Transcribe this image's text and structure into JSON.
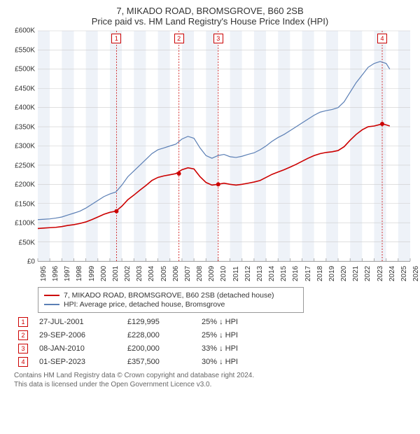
{
  "title": {
    "line1": "7, MIKADO ROAD, BROMSGROVE, B60 2SB",
    "line2": "Price paid vs. HM Land Registry's House Price Index (HPI)"
  },
  "chart": {
    "type": "line",
    "background_color": "#ffffff",
    "plot_bg": "#ffffff",
    "grid_color": "#cccccc",
    "axis_color": "#999999",
    "text_color": "#333333",
    "label_fontsize": 10,
    "x": {
      "min": 1995,
      "max": 2026,
      "ticks": [
        1995,
        1996,
        1997,
        1998,
        1999,
        2000,
        2001,
        2002,
        2003,
        2004,
        2005,
        2006,
        2007,
        2008,
        2009,
        2010,
        2011,
        2012,
        2013,
        2014,
        2015,
        2016,
        2017,
        2018,
        2019,
        2020,
        2021,
        2022,
        2023,
        2024,
        2025,
        2026
      ],
      "label_rotation": -90
    },
    "y": {
      "min": 0,
      "max": 600000,
      "ticks": [
        0,
        50000,
        100000,
        150000,
        200000,
        250000,
        300000,
        350000,
        400000,
        450000,
        500000,
        550000,
        600000
      ],
      "tick_labels": [
        "£0",
        "£50K",
        "£100K",
        "£150K",
        "£200K",
        "£250K",
        "£300K",
        "£350K",
        "£400K",
        "£450K",
        "£500K",
        "£550K",
        "£600K"
      ]
    },
    "bands": {
      "color": "#eef2f8",
      "alt_color": "#ffffff"
    },
    "series": [
      {
        "name": "price_paid",
        "label": "7, MIKADO ROAD, BROMSGROVE, B60 2SB (detached house)",
        "color": "#cc0000",
        "width": 1.6,
        "points": [
          [
            1995.0,
            85000
          ],
          [
            1995.5,
            86000
          ],
          [
            1996.0,
            87000
          ],
          [
            1996.5,
            88000
          ],
          [
            1997.0,
            90000
          ],
          [
            1997.5,
            93000
          ],
          [
            1998.0,
            95000
          ],
          [
            1998.5,
            98000
          ],
          [
            1999.0,
            102000
          ],
          [
            1999.5,
            108000
          ],
          [
            2000.0,
            115000
          ],
          [
            2000.5,
            122000
          ],
          [
            2001.0,
            127000
          ],
          [
            2001.5,
            130000
          ],
          [
            2002.0,
            143000
          ],
          [
            2002.5,
            160000
          ],
          [
            2003.0,
            172000
          ],
          [
            2003.5,
            185000
          ],
          [
            2004.0,
            197000
          ],
          [
            2004.5,
            210000
          ],
          [
            2005.0,
            218000
          ],
          [
            2005.5,
            222000
          ],
          [
            2006.0,
            225000
          ],
          [
            2006.5,
            228000
          ],
          [
            2007.0,
            238000
          ],
          [
            2007.5,
            243000
          ],
          [
            2008.0,
            240000
          ],
          [
            2008.5,
            220000
          ],
          [
            2009.0,
            205000
          ],
          [
            2009.5,
            198000
          ],
          [
            2010.0,
            200000
          ],
          [
            2010.5,
            203000
          ],
          [
            2011.0,
            200000
          ],
          [
            2011.5,
            198000
          ],
          [
            2012.0,
            200000
          ],
          [
            2012.5,
            203000
          ],
          [
            2013.0,
            206000
          ],
          [
            2013.5,
            210000
          ],
          [
            2014.0,
            218000
          ],
          [
            2014.5,
            226000
          ],
          [
            2015.0,
            232000
          ],
          [
            2015.5,
            238000
          ],
          [
            2016.0,
            245000
          ],
          [
            2016.5,
            252000
          ],
          [
            2017.0,
            260000
          ],
          [
            2017.5,
            268000
          ],
          [
            2018.0,
            275000
          ],
          [
            2018.5,
            280000
          ],
          [
            2019.0,
            283000
          ],
          [
            2019.5,
            285000
          ],
          [
            2020.0,
            288000
          ],
          [
            2020.5,
            298000
          ],
          [
            2021.0,
            315000
          ],
          [
            2021.5,
            330000
          ],
          [
            2022.0,
            342000
          ],
          [
            2022.5,
            350000
          ],
          [
            2023.0,
            352000
          ],
          [
            2023.5,
            356000
          ],
          [
            2023.67,
            357500
          ],
          [
            2024.0,
            355000
          ],
          [
            2024.3,
            352000
          ]
        ],
        "markers": [
          {
            "x": 2001.55,
            "y": 130000
          },
          {
            "x": 2006.75,
            "y": 228000
          },
          {
            "x": 2010.02,
            "y": 200000
          },
          {
            "x": 2023.67,
            "y": 357500
          }
        ]
      },
      {
        "name": "hpi",
        "label": "HPI: Average price, detached house, Bromsgrove",
        "color": "#5b7fb5",
        "width": 1.2,
        "points": [
          [
            1995.0,
            108000
          ],
          [
            1995.5,
            109000
          ],
          [
            1996.0,
            110000
          ],
          [
            1996.5,
            112000
          ],
          [
            1997.0,
            115000
          ],
          [
            1997.5,
            120000
          ],
          [
            1998.0,
            125000
          ],
          [
            1998.5,
            130000
          ],
          [
            1999.0,
            138000
          ],
          [
            1999.5,
            148000
          ],
          [
            2000.0,
            158000
          ],
          [
            2000.5,
            168000
          ],
          [
            2001.0,
            175000
          ],
          [
            2001.5,
            180000
          ],
          [
            2002.0,
            198000
          ],
          [
            2002.5,
            220000
          ],
          [
            2003.0,
            235000
          ],
          [
            2003.5,
            250000
          ],
          [
            2004.0,
            265000
          ],
          [
            2004.5,
            280000
          ],
          [
            2005.0,
            290000
          ],
          [
            2005.5,
            295000
          ],
          [
            2006.0,
            300000
          ],
          [
            2006.5,
            305000
          ],
          [
            2007.0,
            318000
          ],
          [
            2007.5,
            325000
          ],
          [
            2008.0,
            320000
          ],
          [
            2008.5,
            295000
          ],
          [
            2009.0,
            275000
          ],
          [
            2009.5,
            268000
          ],
          [
            2010.0,
            275000
          ],
          [
            2010.5,
            278000
          ],
          [
            2011.0,
            272000
          ],
          [
            2011.5,
            270000
          ],
          [
            2012.0,
            273000
          ],
          [
            2012.5,
            278000
          ],
          [
            2013.0,
            282000
          ],
          [
            2013.5,
            290000
          ],
          [
            2014.0,
            300000
          ],
          [
            2014.5,
            312000
          ],
          [
            2015.0,
            322000
          ],
          [
            2015.5,
            330000
          ],
          [
            2016.0,
            340000
          ],
          [
            2016.5,
            350000
          ],
          [
            2017.0,
            360000
          ],
          [
            2017.5,
            370000
          ],
          [
            2018.0,
            380000
          ],
          [
            2018.5,
            388000
          ],
          [
            2019.0,
            392000
          ],
          [
            2019.5,
            395000
          ],
          [
            2020.0,
            400000
          ],
          [
            2020.5,
            415000
          ],
          [
            2021.0,
            440000
          ],
          [
            2021.5,
            465000
          ],
          [
            2022.0,
            485000
          ],
          [
            2022.5,
            505000
          ],
          [
            2023.0,
            515000
          ],
          [
            2023.5,
            520000
          ],
          [
            2024.0,
            515000
          ],
          [
            2024.3,
            500000
          ]
        ]
      }
    ],
    "events": [
      {
        "n": "1",
        "x": 2001.55,
        "color": "#cc0000"
      },
      {
        "n": "2",
        "x": 2006.75,
        "color": "#cc0000"
      },
      {
        "n": "3",
        "x": 2010.02,
        "color": "#cc0000"
      },
      {
        "n": "4",
        "x": 2023.67,
        "color": "#cc0000"
      }
    ]
  },
  "legend": {
    "items": [
      {
        "color": "#cc0000",
        "label": "7, MIKADO ROAD, BROMSGROVE, B60 2SB (detached house)"
      },
      {
        "color": "#5b7fb5",
        "label": "HPI: Average price, detached house, Bromsgrove"
      }
    ]
  },
  "sales": [
    {
      "n": "1",
      "color": "#cc0000",
      "date": "27-JUL-2001",
      "price": "£129,995",
      "diff": "25% ↓ HPI"
    },
    {
      "n": "2",
      "color": "#cc0000",
      "date": "29-SEP-2006",
      "price": "£228,000",
      "diff": "25% ↓ HPI"
    },
    {
      "n": "3",
      "color": "#cc0000",
      "date": "08-JAN-2010",
      "price": "£200,000",
      "diff": "33% ↓ HPI"
    },
    {
      "n": "4",
      "color": "#cc0000",
      "date": "01-SEP-2023",
      "price": "£357,500",
      "diff": "30% ↓ HPI"
    }
  ],
  "footer": {
    "line1": "Contains HM Land Registry data © Crown copyright and database right 2024.",
    "line2": "This data is licensed under the Open Government Licence v3.0."
  }
}
